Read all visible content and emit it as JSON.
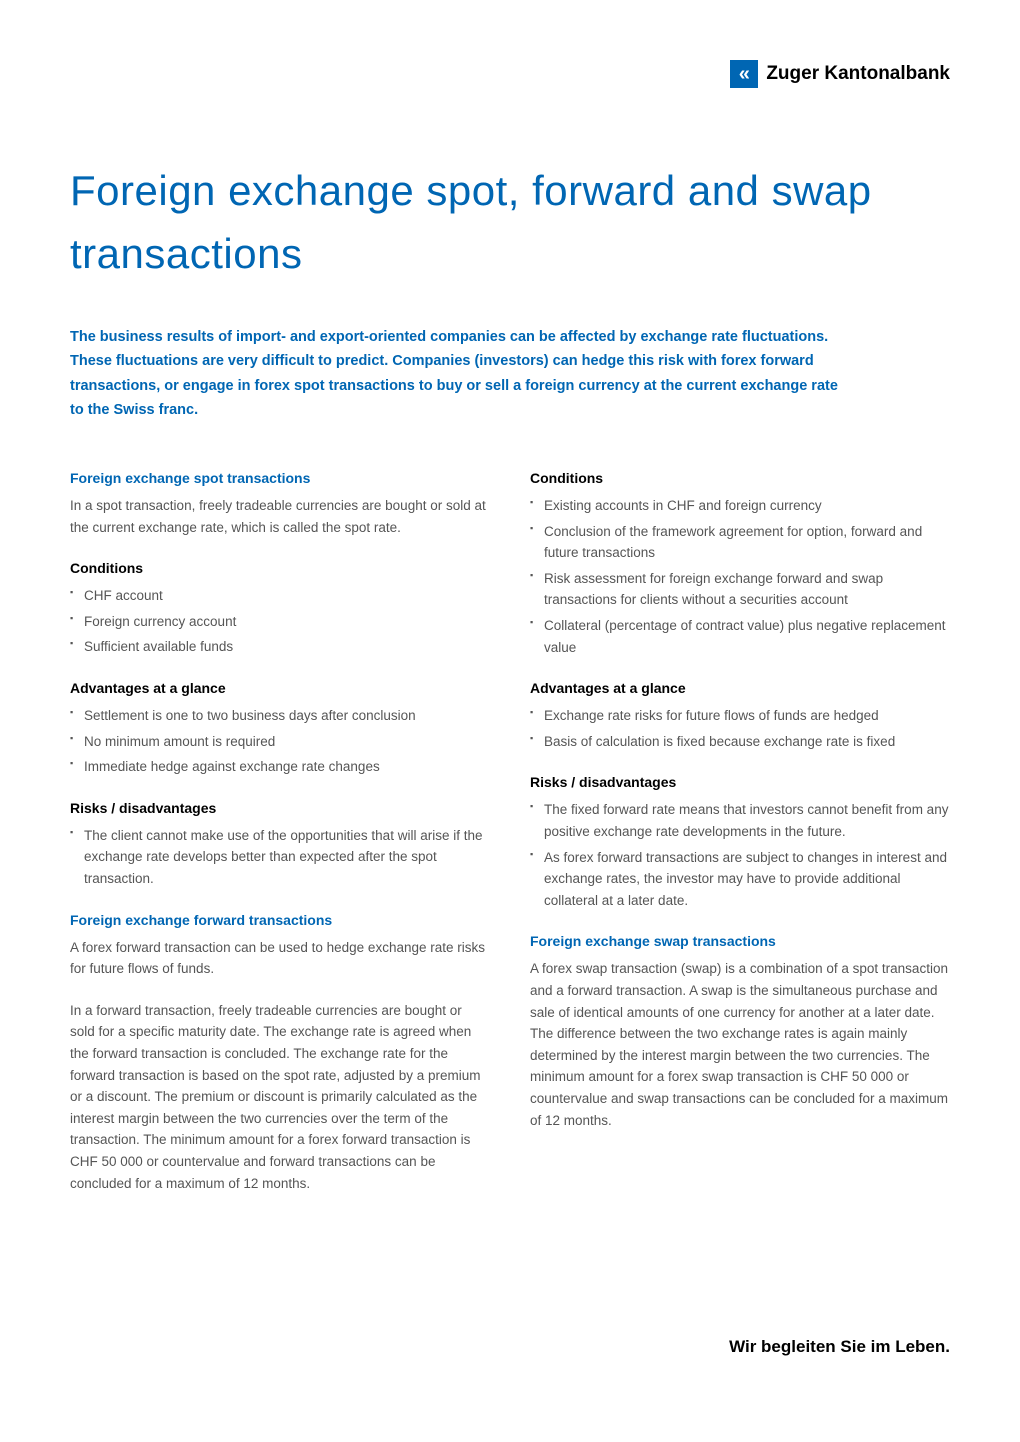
{
  "brand": {
    "name": "Zuger Kantonalbank",
    "logo_bg": "#0066b3",
    "logo_glyph": "«",
    "accent_color": "#0066b3"
  },
  "title": "Foreign exchange spot, forward and swap transactions",
  "intro": "The business results of import- and export-oriented companies can be affected by exchange rate fluctuations. These fluctuations are very difficult to predict. Companies (investors) can hedge this risk with forex forward transactions, or engage in forex spot transactions to buy or sell a foreign currency at the current exchange rate to the Swiss franc.",
  "left": {
    "spot": {
      "heading": "Foreign exchange spot transactions",
      "body": "In a spot transaction, freely tradeable currencies are bought or sold at the current exchange rate, which is called the spot rate."
    },
    "conditions": {
      "heading": "Conditions",
      "items": [
        "CHF account",
        "Foreign currency account",
        "Sufficient available funds"
      ]
    },
    "advantages": {
      "heading": "Advantages at a glance",
      "items": [
        "Settlement is one to two business days after conclusion",
        "No minimum amount is required",
        "Immediate hedge against exchange rate changes"
      ]
    },
    "risks": {
      "heading": "Risks / disadvantages",
      "items": [
        "The client cannot make use of the opportunities that will arise if the exchange rate develops better than expected after the spot transaction."
      ]
    },
    "forward": {
      "heading": "Foreign exchange forward transactions",
      "body1": "A forex forward transaction can be used to hedge exchange rate risks for future flows of funds.",
      "body2": "In a forward transaction, freely tradeable currencies are bought or sold for a specific maturity date. The exchange rate is agreed when the forward transaction is concluded. The exchange rate for the forward transaction is based on the spot rate, adjusted by a premium or a discount. The premium or discount is primarily calculated as the interest margin between the two currencies over the term of the transaction. The minimum amount for a forex forward transaction is CHF 50 000 or countervalue and forward transactions can be concluded for a maximum of 12 months."
    }
  },
  "right": {
    "conditions": {
      "heading": "Conditions",
      "items": [
        "Existing accounts in CHF and foreign currency",
        "Conclusion of the framework agreement for option, forward and future transactions",
        "Risk assessment for foreign exchange forward and swap transactions for clients without a securities account",
        "Collateral (percentage of contract value) plus negative replacement value"
      ]
    },
    "advantages": {
      "heading": "Advantages at a glance",
      "items": [
        "Exchange rate risks for future flows of funds are hedged",
        "Basis of calculation is fixed because exchange rate is fixed"
      ]
    },
    "risks": {
      "heading": "Risks / disadvantages",
      "items": [
        "The fixed forward rate means that investors cannot benefit from any positive exchange rate developments in the future.",
        "As forex forward transactions are subject to changes in interest and exchange rates, the investor may have to provide additional collateral at a later date."
      ]
    },
    "swap": {
      "heading": "Foreign exchange swap transactions",
      "body": "A forex swap transaction (swap) is a combination of a spot transaction and a forward transaction. A swap is the simultaneous purchase and sale of identical amounts of one currency for another at a later date. The difference between the two exchange rates is again mainly determined by the interest margin between the two currencies. The minimum amount for a forex swap transaction is CHF 50 000 or countervalue and swap transactions can be concluded for a maximum of 12 months."
    }
  },
  "footer": "Wir begleiten Sie im Leben."
}
